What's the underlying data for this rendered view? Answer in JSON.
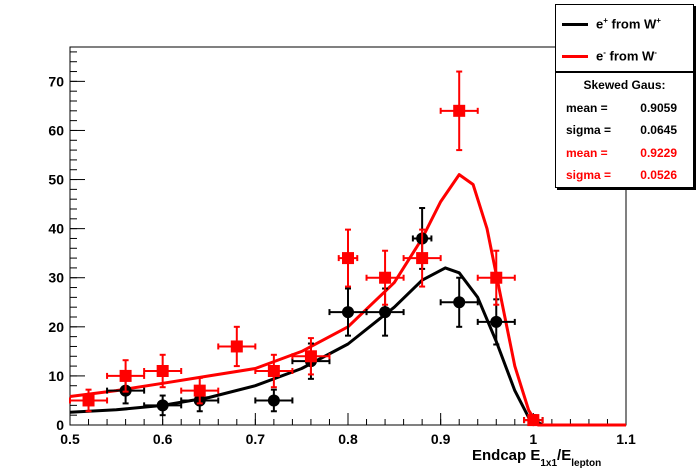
{
  "chart_data": {
    "type": "scatter",
    "xlabel": "Endcap E",
    "xlabel_sub1": "1x1",
    "xlabel_mid": "/E",
    "xlabel_sub2": "lepton",
    "xlim": [
      0.5,
      1.1
    ],
    "ylim": [
      0,
      77
    ],
    "x_ticks": [
      "0.5",
      "0.6",
      "0.7",
      "0.8",
      "0.9",
      "1",
      "1.1"
    ],
    "y_ticks": [
      "0",
      "10",
      "20",
      "30",
      "40",
      "50",
      "60",
      "70"
    ],
    "grid": false,
    "legend_position": "top-right",
    "colors": {
      "positron": "#000000",
      "electron": "#ff0000"
    },
    "series": [
      {
        "name": "e+ from W+",
        "marker": "circle",
        "points": [
          {
            "x": 0.56,
            "y": 7,
            "xerr": 0.02,
            "yerr": 2.6
          },
          {
            "x": 0.6,
            "y": 4,
            "xerr": 0.02,
            "yerr": 2.0
          },
          {
            "x": 0.64,
            "y": 5,
            "xerr": 0.02,
            "yerr": 2.2
          },
          {
            "x": 0.72,
            "y": 5,
            "xerr": 0.02,
            "yerr": 2.2
          },
          {
            "x": 0.76,
            "y": 13,
            "xerr": 0.02,
            "yerr": 3.6
          },
          {
            "x": 0.8,
            "y": 23,
            "xerr": 0.02,
            "yerr": 4.8
          },
          {
            "x": 0.84,
            "y": 23,
            "xerr": 0.02,
            "yerr": 4.8
          },
          {
            "x": 0.88,
            "y": 38,
            "xerr": 0.01,
            "yerr": 6.2
          },
          {
            "x": 0.92,
            "y": 25,
            "xerr": 0.02,
            "yerr": 5.0
          },
          {
            "x": 0.96,
            "y": 21,
            "xerr": 0.02,
            "yerr": 4.6
          },
          {
            "x": 1.0,
            "y": 1,
            "xerr": 0.01,
            "yerr": 1.0
          }
        ],
        "fit": {
          "mean": 0.9059,
          "sigma": 0.0645
        }
      },
      {
        "name": "e- from W-",
        "marker": "square",
        "points": [
          {
            "x": 0.52,
            "y": 5,
            "xerr": 0.02,
            "yerr": 2.2
          },
          {
            "x": 0.56,
            "y": 10,
            "xerr": 0.02,
            "yerr": 3.2
          },
          {
            "x": 0.6,
            "y": 11,
            "xerr": 0.02,
            "yerr": 3.3
          },
          {
            "x": 0.64,
            "y": 7,
            "xerr": 0.02,
            "yerr": 2.6
          },
          {
            "x": 0.68,
            "y": 16,
            "xerr": 0.02,
            "yerr": 4.0
          },
          {
            "x": 0.72,
            "y": 11,
            "xerr": 0.02,
            "yerr": 3.3
          },
          {
            "x": 0.76,
            "y": 14,
            "xerr": 0.02,
            "yerr": 3.7
          },
          {
            "x": 0.8,
            "y": 34,
            "xerr": 0.01,
            "yerr": 5.8
          },
          {
            "x": 0.84,
            "y": 30,
            "xerr": 0.02,
            "yerr": 5.5
          },
          {
            "x": 0.88,
            "y": 34,
            "xerr": 0.02,
            "yerr": 5.8
          },
          {
            "x": 0.92,
            "y": 64,
            "xerr": 0.02,
            "yerr": 8.0
          },
          {
            "x": 0.96,
            "y": 30,
            "xerr": 0.02,
            "yerr": 5.5
          },
          {
            "x": 1.0,
            "y": 1,
            "xerr": 0.01,
            "yerr": 1.0
          }
        ],
        "fit": {
          "mean": 0.9229,
          "sigma": 0.0526
        }
      }
    ],
    "fit_curves": [
      {
        "color": "#000000",
        "points": [
          [
            0.5,
            2.6
          ],
          [
            0.55,
            3.1
          ],
          [
            0.6,
            4.0
          ],
          [
            0.65,
            5.6
          ],
          [
            0.7,
            8.0
          ],
          [
            0.75,
            11.5
          ],
          [
            0.8,
            16.5
          ],
          [
            0.85,
            24.0
          ],
          [
            0.88,
            29.5
          ],
          [
            0.905,
            32.0
          ],
          [
            0.92,
            31.0
          ],
          [
            0.94,
            26.0
          ],
          [
            0.96,
            17.0
          ],
          [
            0.98,
            7.0
          ],
          [
            0.995,
            1.5
          ],
          [
            1.01,
            0
          ],
          [
            1.1,
            0
          ]
        ]
      },
      {
        "color": "#ff0000",
        "points": [
          [
            0.5,
            5.8
          ],
          [
            0.55,
            7.0
          ],
          [
            0.6,
            8.5
          ],
          [
            0.65,
            10.0
          ],
          [
            0.7,
            11.5
          ],
          [
            0.75,
            15.0
          ],
          [
            0.8,
            20.0
          ],
          [
            0.85,
            29.0
          ],
          [
            0.88,
            38.0
          ],
          [
            0.9,
            45.5
          ],
          [
            0.92,
            51.0
          ],
          [
            0.935,
            49.0
          ],
          [
            0.95,
            40.0
          ],
          [
            0.965,
            26.0
          ],
          [
            0.98,
            12.0
          ],
          [
            0.995,
            3.0
          ],
          [
            1.005,
            0
          ],
          [
            1.1,
            0
          ]
        ]
      }
    ]
  },
  "legend": {
    "items": [
      {
        "label_base": "e",
        "label_sup": "+",
        "label_mid": " from W",
        "label_sup2": "+",
        "color": "#000000"
      },
      {
        "label_base": "e",
        "label_sup": "-",
        "label_mid": " from W",
        "label_sup2": "-",
        "color": "#ff0000"
      }
    ]
  },
  "stats": {
    "title": "Skewed Gaus:",
    "rows": [
      {
        "key": "mean =",
        "value": "0.9059",
        "color": "#000000"
      },
      {
        "key": "sigma =",
        "value": "0.0645",
        "color": "#000000"
      },
      {
        "key": "mean =",
        "value": "0.9229",
        "color": "#ff0000"
      },
      {
        "key": "sigma =",
        "value": "0.0526",
        "color": "#ff0000"
      }
    ]
  }
}
